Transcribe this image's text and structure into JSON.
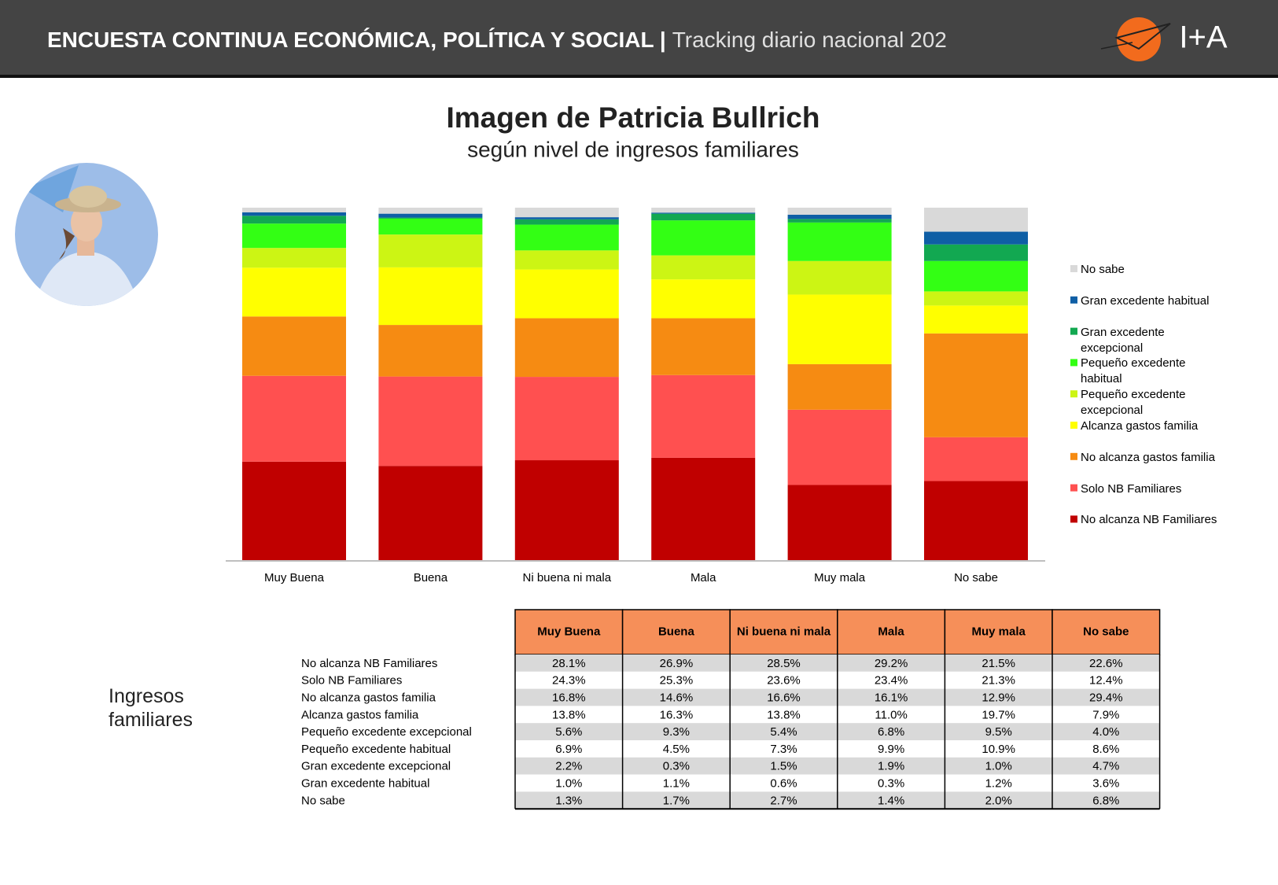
{
  "header": {
    "title": "ENCUESTA CONTINUA ECONÓMICA, POLÍTICA Y SOCIAL |",
    "subtitle": "Tracking diario nacional 202",
    "logo": "I+A"
  },
  "side_label": "Ingresos familiares",
  "chart_data": {
    "type": "stacked_bar",
    "title": "Imagen de Patricia Bullrich",
    "subtitle": "según nivel de ingresos familiares",
    "categories": [
      "Muy Buena",
      "Buena",
      "Ni buena ni mala",
      "Mala",
      "Muy mala",
      "No sabe"
    ],
    "ylim": [
      0,
      100
    ],
    "series": [
      {
        "name": "No alcanza NB Familiares",
        "color": "#c00000",
        "values": [
          28.1,
          26.9,
          28.5,
          29.2,
          21.5,
          22.6
        ],
        "value_labels": [
          "28.1%",
          "26.9%",
          "28.5%",
          "29.2%",
          "21.5%",
          "22.6%"
        ]
      },
      {
        "name": "Solo NB Familiares",
        "color": "#ff5050",
        "values": [
          24.3,
          25.3,
          23.6,
          23.4,
          21.3,
          12.4
        ],
        "value_labels": [
          "24.3%",
          "25.3%",
          "23.6%",
          "23.4%",
          "21.3%",
          "12.4%"
        ]
      },
      {
        "name": "No alcanza gastos familia",
        "color": "#f68b12",
        "values": [
          16.8,
          14.6,
          16.6,
          16.1,
          12.9,
          29.4
        ],
        "value_labels": [
          "16.8%",
          "14.6%",
          "16.6%",
          "16.1%",
          "12.9%",
          "29.4%"
        ]
      },
      {
        "name": "Alcanza gastos familia",
        "color": "#ffff00",
        "values": [
          13.8,
          16.3,
          13.8,
          11.0,
          19.7,
          7.9
        ],
        "value_labels": [
          "13.8%",
          "16.3%",
          "13.8%",
          "11.0%",
          "19.7%",
          "7.9%"
        ]
      },
      {
        "name": "Pequeño excedente excepcional",
        "color": "#ccf514",
        "values": [
          5.6,
          9.3,
          5.4,
          6.8,
          9.5,
          4.0
        ],
        "value_labels": [
          "5.6%",
          "9.3%",
          "5.4%",
          "6.8%",
          "9.5%",
          "4.0%"
        ]
      },
      {
        "name": "Pequeño excedente habitual",
        "color": "#33ff14",
        "values": [
          6.9,
          4.5,
          7.3,
          9.9,
          10.9,
          8.6
        ],
        "value_labels": [
          "6.9%",
          "4.5%",
          "7.3%",
          "9.9%",
          "10.9%",
          "8.6%"
        ]
      },
      {
        "name": "Gran excedente excepcional",
        "color": "#12a851",
        "values": [
          2.2,
          0.3,
          1.5,
          1.9,
          1.0,
          4.7
        ],
        "value_labels": [
          "2.2%",
          "0.3%",
          "1.5%",
          "1.9%",
          "1.0%",
          "4.7%"
        ]
      },
      {
        "name": "Gran excedente habitual",
        "color": "#0f5fa5",
        "values": [
          1.0,
          1.1,
          0.6,
          0.3,
          1.2,
          3.6
        ],
        "value_labels": [
          "1.0%",
          "1.1%",
          "0.6%",
          "0.3%",
          "1.2%",
          "3.6%"
        ]
      },
      {
        "name": "No sabe",
        "color": "#d9d9d9",
        "values": [
          1.3,
          1.7,
          2.7,
          1.4,
          2.0,
          6.8
        ],
        "value_labels": [
          "1.3%",
          "1.7%",
          "2.7%",
          "1.4%",
          "2.0%",
          "6.8%"
        ]
      }
    ]
  }
}
